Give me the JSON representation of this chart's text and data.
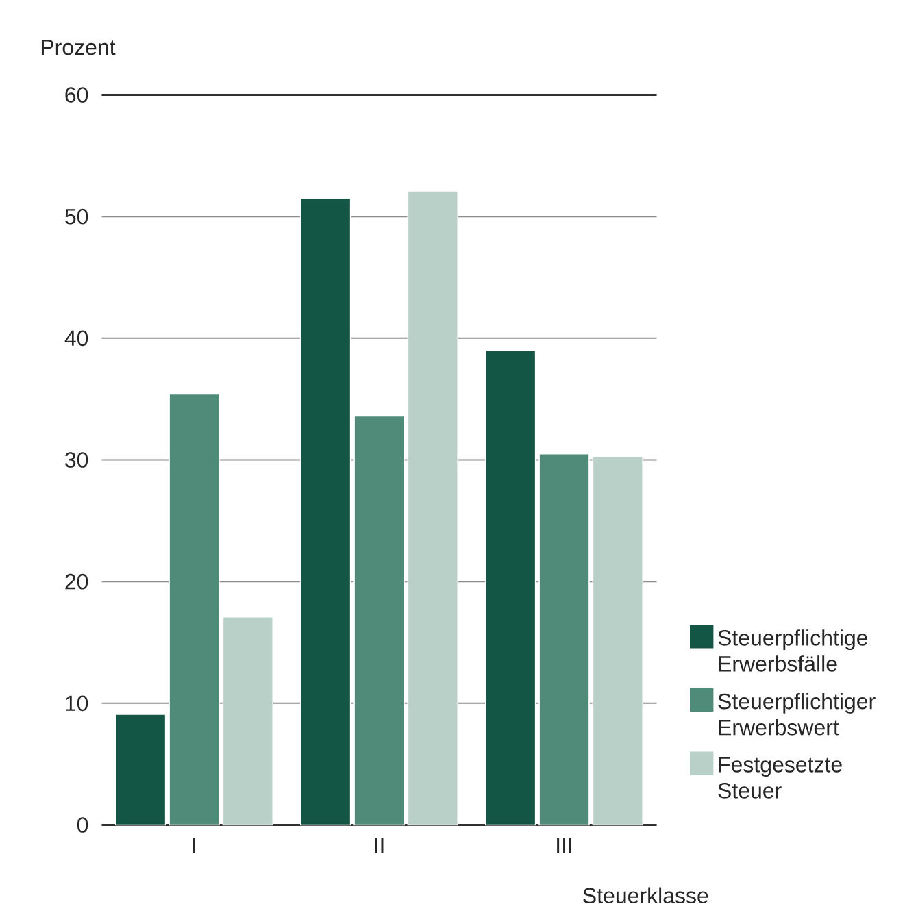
{
  "chart_data": {
    "type": "bar",
    "xlabel": "Steuerklasse",
    "ylabel": "Prozent",
    "categories": [
      "I",
      "II",
      "III"
    ],
    "series": [
      {
        "name": "Steuerpflichtige Erwerbsfälle",
        "color": "#135645",
        "values": [
          9.1,
          51.5,
          39.0
        ]
      },
      {
        "name": "Steuerpflichtiger Erwerbswert",
        "color": "#4f8b78",
        "values": [
          35.4,
          33.6,
          30.5
        ]
      },
      {
        "name": "Festgesetzte Steuer",
        "color": "#b8d0c7",
        "values": [
          17.1,
          52.1,
          30.3
        ]
      }
    ],
    "ylim": [
      0,
      60
    ],
    "yticks": [
      0,
      10,
      20,
      30,
      40,
      50,
      60
    ],
    "grid": "y",
    "legend": "right"
  }
}
